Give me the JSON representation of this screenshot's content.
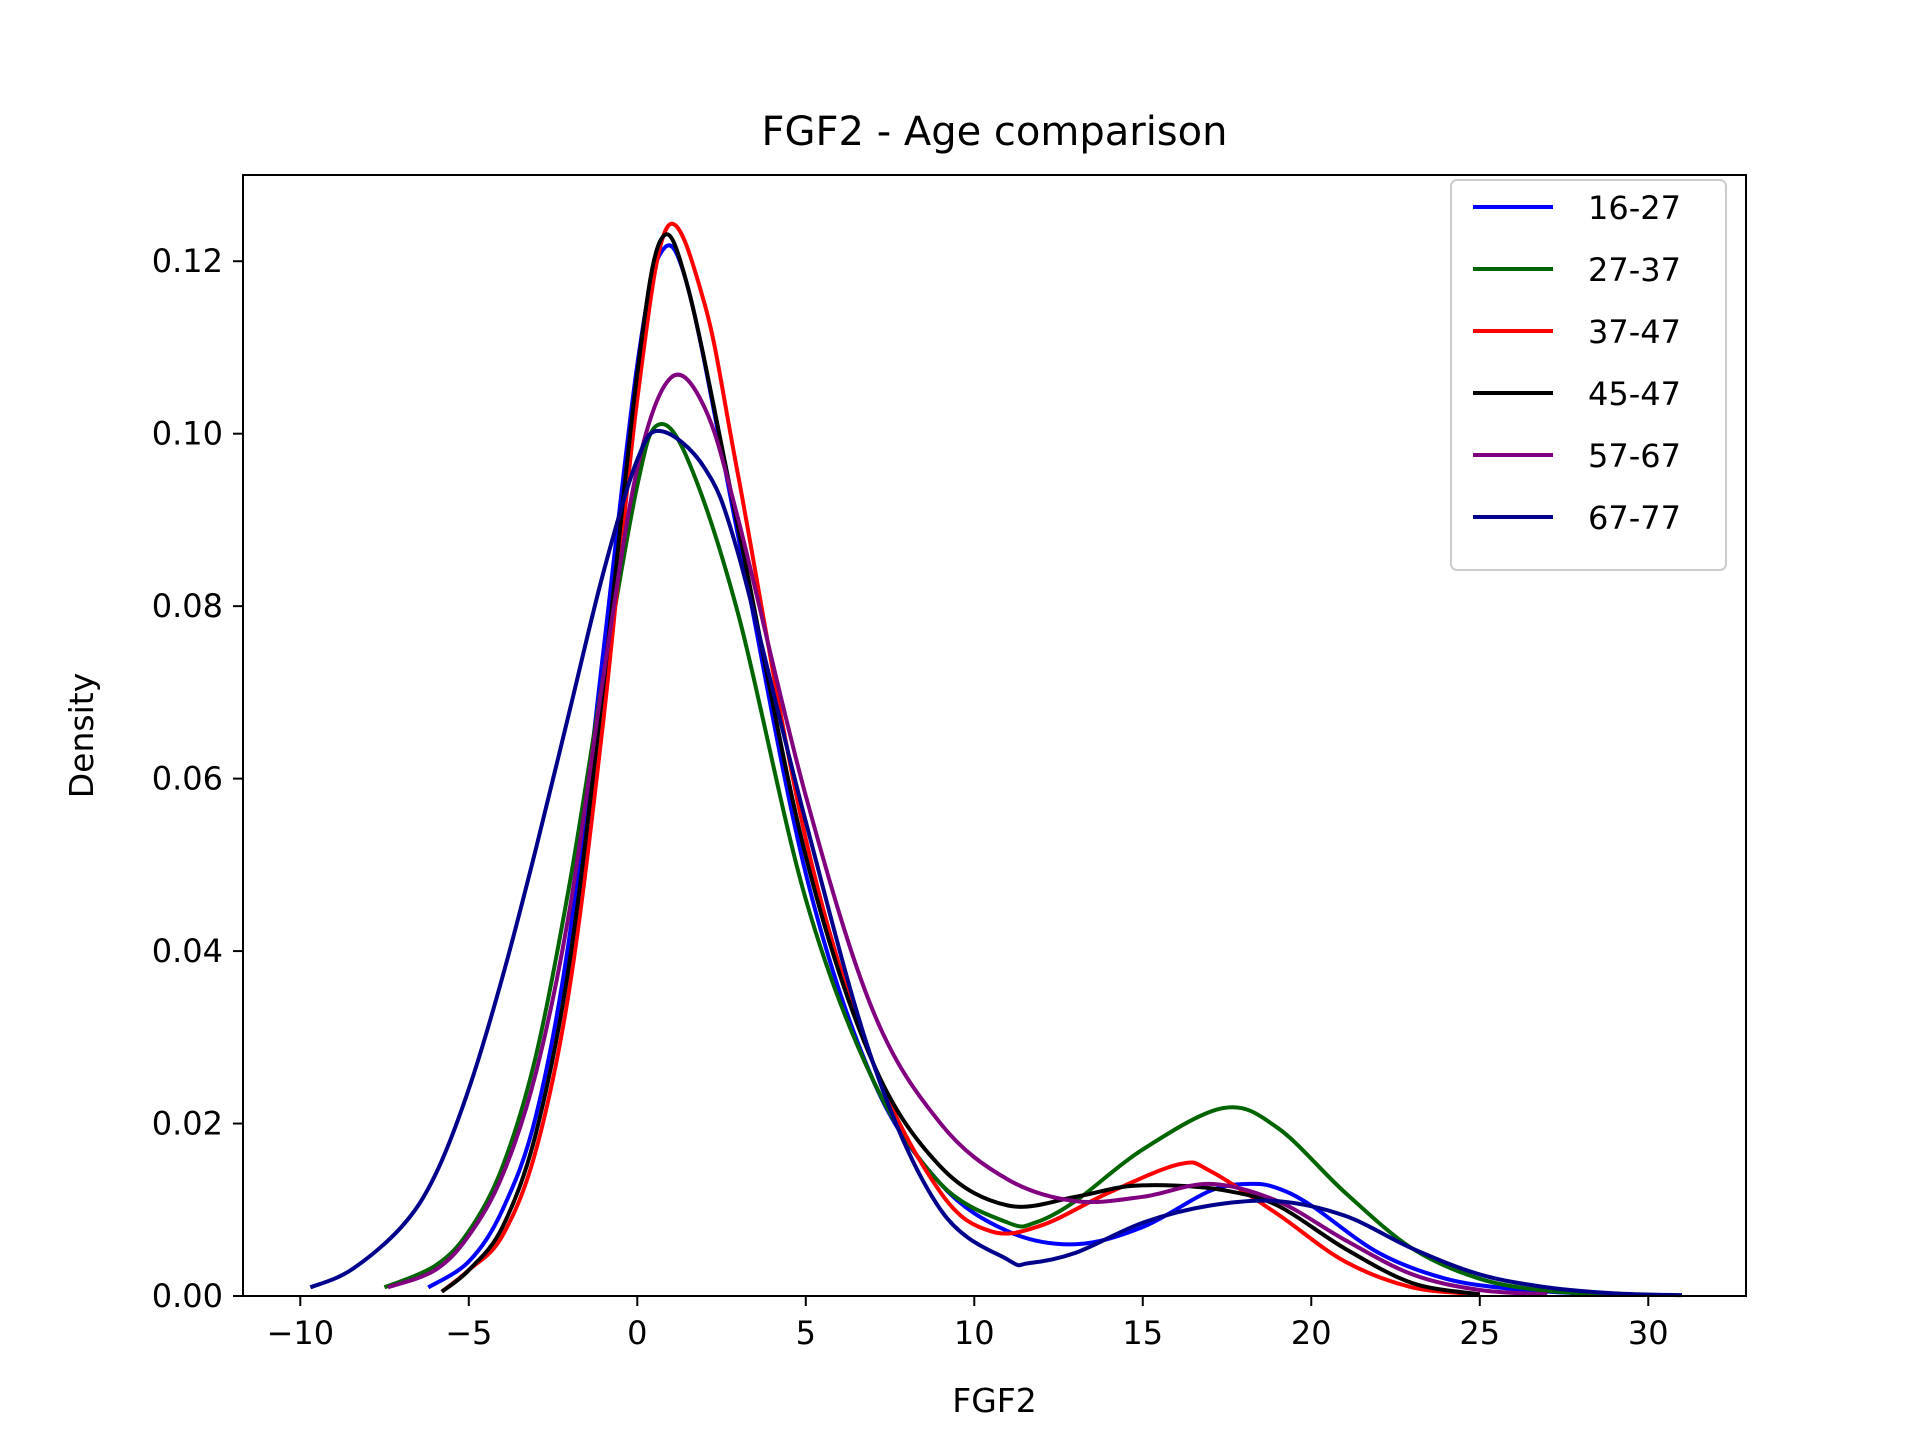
{
  "chart_data": {
    "type": "line",
    "title": "FGF2 - Age comparison",
    "xlabel": "FGF2",
    "ylabel": "Density",
    "xlim": [
      -11.7,
      32.9
    ],
    "ylim": [
      0,
      0.13
    ],
    "xticks": [
      -10,
      -5,
      0,
      5,
      10,
      15,
      20,
      25,
      30
    ],
    "xtick_labels": [
      "−10",
      "−5",
      "0",
      "5",
      "10",
      "15",
      "20",
      "25",
      "30"
    ],
    "yticks": [
      0,
      0.02,
      0.04,
      0.06,
      0.08,
      0.1,
      0.12
    ],
    "ytick_labels": [
      "0.00",
      "0.02",
      "0.04",
      "0.06",
      "0.08",
      "0.10",
      "0.12"
    ],
    "grid": false,
    "legend_position": "top-right",
    "series": [
      {
        "name": "16-27",
        "color": "#0000ff",
        "x": [
          -6.2,
          -5,
          -4,
          -3,
          -2,
          -1,
          0,
          0.7,
          1.5,
          3,
          5,
          7,
          9,
          11,
          13,
          15,
          17,
          18.2,
          19,
          20,
          22,
          24,
          26,
          28
        ],
        "y": [
          0.001,
          0.004,
          0.01,
          0.021,
          0.042,
          0.075,
          0.108,
          0.121,
          0.117,
          0.088,
          0.049,
          0.025,
          0.013,
          0.0075,
          0.006,
          0.008,
          0.0122,
          0.013,
          0.0125,
          0.0105,
          0.005,
          0.002,
          0.0008,
          0.0003
        ]
      },
      {
        "name": "27-37",
        "color": "#006400",
        "x": [
          -7.5,
          -6,
          -5,
          -4,
          -3,
          -2,
          -1,
          0,
          0.6,
          1.5,
          3,
          5,
          7,
          9,
          11,
          11.8,
          13,
          15,
          17.4,
          19,
          21,
          23,
          25,
          27,
          29
        ],
        "y": [
          0.001,
          0.0035,
          0.0075,
          0.015,
          0.028,
          0.048,
          0.072,
          0.094,
          0.101,
          0.097,
          0.079,
          0.046,
          0.025,
          0.013,
          0.0085,
          0.0085,
          0.011,
          0.017,
          0.0218,
          0.0195,
          0.012,
          0.0055,
          0.002,
          0.0006,
          0.0002
        ]
      },
      {
        "name": "37-47",
        "color": "#ff0000",
        "x": [
          -5.8,
          -5,
          -4,
          -3,
          -2,
          -1,
          0,
          0.9,
          2,
          3,
          5,
          7,
          9,
          10.5,
          12,
          14,
          16.1,
          17,
          19,
          21,
          23,
          25
        ],
        "y": [
          0.0005,
          0.003,
          0.007,
          0.017,
          0.036,
          0.067,
          0.104,
          0.124,
          0.115,
          0.095,
          0.053,
          0.027,
          0.012,
          0.0075,
          0.0082,
          0.012,
          0.0153,
          0.0145,
          0.0095,
          0.004,
          0.001,
          0.0002
        ]
      },
      {
        "name": "45-47",
        "color": "#000000",
        "x": [
          -5.8,
          -5,
          -4,
          -3,
          -2,
          -1,
          0,
          0.7,
          1.5,
          3,
          5,
          7,
          9,
          11,
          13,
          14.5,
          16,
          17.5,
          19,
          21,
          23,
          25
        ],
        "y": [
          0.0005,
          0.003,
          0.008,
          0.019,
          0.039,
          0.071,
          0.107,
          0.1225,
          0.117,
          0.089,
          0.051,
          0.027,
          0.015,
          0.0105,
          0.0115,
          0.0127,
          0.0128,
          0.0122,
          0.0105,
          0.0055,
          0.0015,
          0.0002
        ]
      },
      {
        "name": "57-67",
        "color": "#800080",
        "x": [
          -7.4,
          -6,
          -5,
          -4,
          -3,
          -2,
          -1,
          0,
          1,
          2,
          3,
          5,
          7,
          9,
          11,
          13,
          15,
          17,
          19,
          21,
          23,
          25,
          27
        ],
        "y": [
          0.001,
          0.003,
          0.007,
          0.014,
          0.026,
          0.045,
          0.072,
          0.096,
          0.1065,
          0.103,
          0.09,
          0.058,
          0.033,
          0.02,
          0.0135,
          0.011,
          0.0115,
          0.013,
          0.011,
          0.0065,
          0.0025,
          0.0007,
          0.0002
        ]
      },
      {
        "name": "67-77",
        "color": "#00008b",
        "x": [
          -9.7,
          -8.5,
          -7,
          -6,
          -5,
          -4,
          -3,
          -2,
          -1,
          0,
          0.7,
          2,
          3,
          5,
          7,
          9,
          11,
          11.6,
          13,
          15,
          17,
          19,
          21,
          23,
          25,
          27,
          29,
          31
        ],
        "y": [
          0.001,
          0.003,
          0.008,
          0.014,
          0.024,
          0.037,
          0.052,
          0.068,
          0.084,
          0.097,
          0.1003,
          0.096,
          0.086,
          0.055,
          0.027,
          0.01,
          0.0042,
          0.0038,
          0.005,
          0.0085,
          0.0105,
          0.011,
          0.0093,
          0.0055,
          0.0025,
          0.001,
          0.0003,
          0.0001
        ]
      }
    ]
  }
}
